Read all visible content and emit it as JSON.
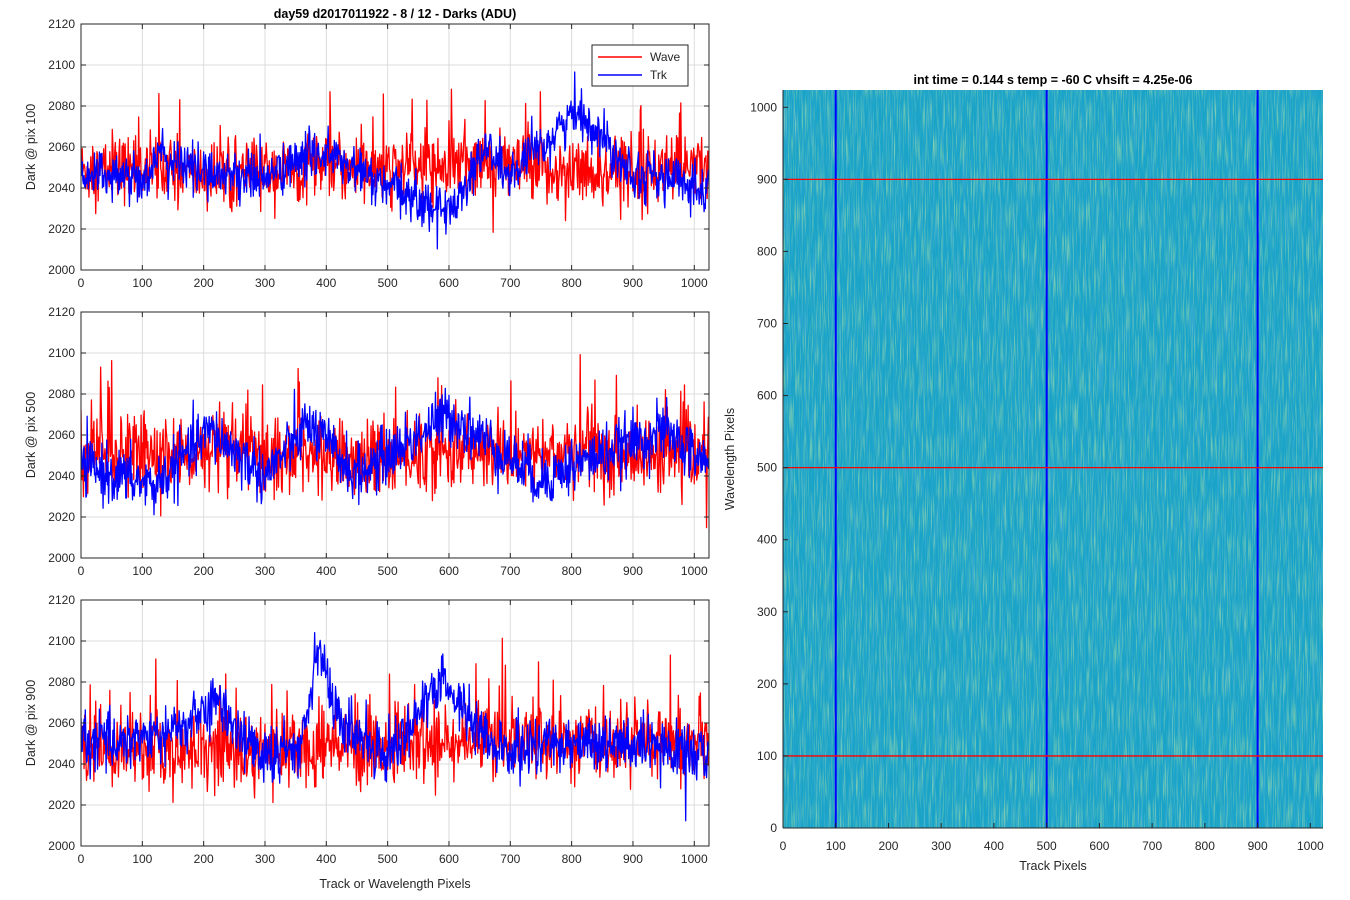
{
  "figure": {
    "left_title": "day59 d2017011922 - 8 / 12 - Darks (ADU)",
    "left_xlabel": "Track or Wavelength Pixels",
    "right_title": "int time = 0.144 s   temp = -60 C   vhsift = 4.25e-06",
    "right_xlabel": "Track Pixels",
    "right_ylabel": "Wavelength Pixels"
  },
  "legend": {
    "placement": "top-right",
    "items": [
      {
        "label": "Wave",
        "color": "#ff0000"
      },
      {
        "label": "Trk",
        "color": "#0000ff"
      }
    ]
  },
  "chart_data": [
    {
      "type": "line",
      "ylabel": "Dark @ pix 100",
      "xlim": [
        0,
        1024
      ],
      "ylim": [
        2000,
        2120
      ],
      "xticks": [
        0,
        100,
        200,
        300,
        400,
        500,
        600,
        700,
        800,
        900,
        1000
      ],
      "yticks": [
        2000,
        2020,
        2040,
        2060,
        2080,
        2100,
        2120
      ],
      "grid": true,
      "series": [
        {
          "name": "Wave",
          "color": "#ff0000",
          "baseline": 2048,
          "noise": 8,
          "spikes": 0.05,
          "spike_amp": 30,
          "x_samples": [
            0,
            100,
            200,
            300,
            400,
            500,
            600,
            700,
            800,
            900,
            1024
          ],
          "values": [
            2048,
            2050,
            2046,
            2048,
            2050,
            2048,
            2052,
            2050,
            2048,
            2048,
            2050
          ]
        },
        {
          "name": "Trk",
          "color": "#0000ff",
          "baseline": 2045,
          "noise": 6,
          "spikes": 0.0,
          "spike_amp": 0,
          "x_samples": [
            0,
            100,
            130,
            200,
            300,
            390,
            500,
            600,
            660,
            700,
            810,
            900,
            1024
          ],
          "values": [
            2048,
            2045,
            2055,
            2048,
            2045,
            2058,
            2040,
            2028,
            2060,
            2045,
            2078,
            2048,
            2040
          ]
        }
      ]
    },
    {
      "type": "line",
      "ylabel": "Dark @ pix 500",
      "xlim": [
        0,
        1024
      ],
      "ylim": [
        2000,
        2120
      ],
      "xticks": [
        0,
        100,
        200,
        300,
        400,
        500,
        600,
        700,
        800,
        900,
        1000
      ],
      "yticks": [
        2000,
        2020,
        2040,
        2060,
        2080,
        2100,
        2120
      ],
      "grid": true,
      "series": [
        {
          "name": "Wave",
          "color": "#ff0000",
          "baseline": 2050,
          "noise": 9,
          "spikes": 0.06,
          "spike_amp": 35,
          "x_samples": [
            0,
            100,
            200,
            300,
            400,
            500,
            600,
            700,
            800,
            900,
            1024
          ],
          "values": [
            2050,
            2052,
            2050,
            2050,
            2050,
            2048,
            2052,
            2050,
            2052,
            2050,
            2050
          ]
        },
        {
          "name": "Trk",
          "color": "#0000ff",
          "baseline": 2042,
          "noise": 7,
          "spikes": 0.0,
          "spike_amp": 0,
          "x_samples": [
            0,
            120,
            210,
            300,
            370,
            450,
            600,
            750,
            800,
            950,
            1024
          ],
          "values": [
            2045,
            2035,
            2062,
            2040,
            2065,
            2040,
            2070,
            2038,
            2045,
            2062,
            2045
          ]
        }
      ]
    },
    {
      "type": "line",
      "ylabel": "Dark @ pix 900",
      "xlim": [
        0,
        1024
      ],
      "ylim": [
        2000,
        2120
      ],
      "xticks": [
        0,
        100,
        200,
        300,
        400,
        500,
        600,
        700,
        800,
        900,
        1000
      ],
      "yticks": [
        2000,
        2020,
        2040,
        2060,
        2080,
        2100,
        2120
      ],
      "grid": true,
      "series": [
        {
          "name": "Wave",
          "color": "#ff0000",
          "baseline": 2048,
          "noise": 9,
          "spikes": 0.06,
          "spike_amp": 35,
          "x_samples": [
            0,
            100,
            200,
            300,
            400,
            500,
            600,
            700,
            800,
            900,
            1024
          ],
          "values": [
            2048,
            2046,
            2048,
            2046,
            2048,
            2050,
            2050,
            2052,
            2050,
            2050,
            2050
          ]
        },
        {
          "name": "Trk",
          "color": "#0000ff",
          "baseline": 2050,
          "noise": 7,
          "spikes": 0.0,
          "spike_amp": 0,
          "x_samples": [
            0,
            150,
            220,
            300,
            360,
            385,
            420,
            500,
            590,
            680,
            800,
            900,
            1024
          ],
          "values": [
            2050,
            2055,
            2070,
            2042,
            2050,
            2100,
            2060,
            2045,
            2080,
            2045,
            2052,
            2048,
            2045
          ]
        }
      ]
    },
    {
      "type": "heatmap",
      "xlabel": "Track Pixels",
      "ylabel": "Wavelength Pixels",
      "xlim": [
        0,
        1024
      ],
      "ylim": [
        0,
        1024
      ],
      "xticks": [
        0,
        100,
        200,
        300,
        400,
        500,
        600,
        700,
        800,
        900,
        1000
      ],
      "yticks": [
        0,
        100,
        200,
        300,
        400,
        500,
        600,
        700,
        800,
        900,
        1000
      ],
      "base_color": "#1aa3c8",
      "hlines": {
        "color": "#ff0000",
        "y": [
          100,
          500,
          900
        ]
      },
      "vlines": {
        "color": "#0000ff",
        "x": [
          100,
          500,
          900
        ]
      }
    }
  ]
}
